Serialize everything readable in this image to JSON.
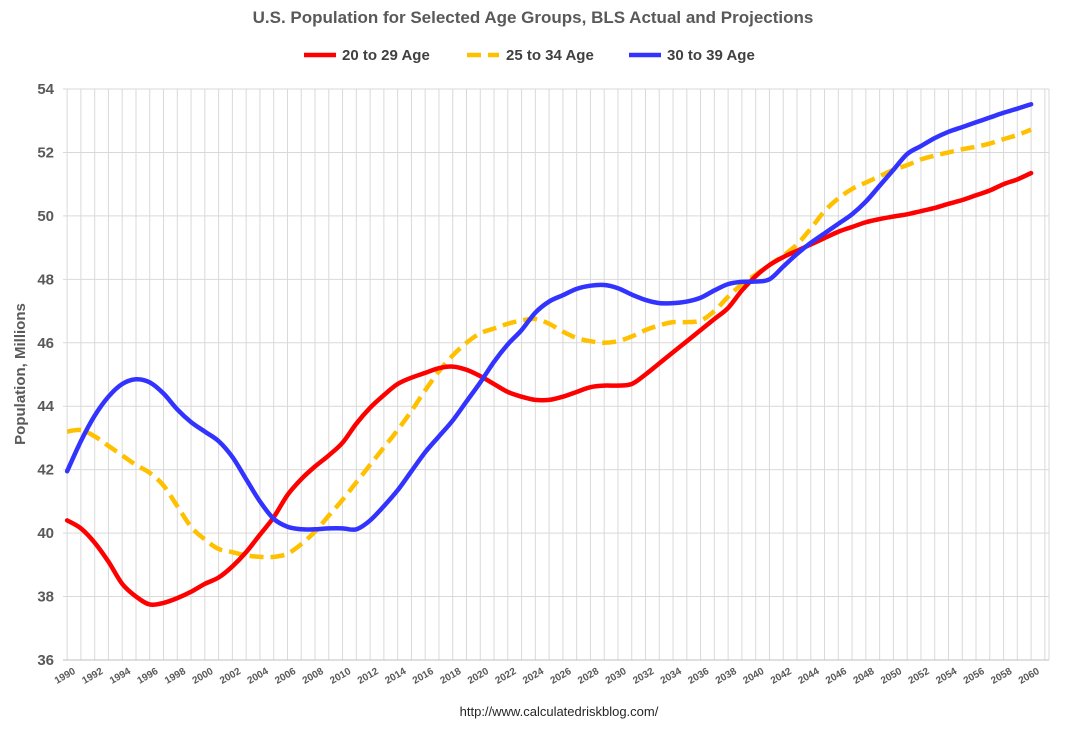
{
  "chart_data": {
    "type": "line",
    "title": "U.S. Population for Selected Age Groups, BLS Actual and Projections",
    "ylabel": "Population, Millions",
    "xlabel": "",
    "ylim": [
      36,
      54
    ],
    "yticks": [
      36,
      38,
      40,
      42,
      44,
      46,
      48,
      50,
      52,
      54
    ],
    "xlim": [
      1989.7,
      2061.3
    ],
    "xticks": [
      1990,
      1992,
      1994,
      1996,
      1998,
      2000,
      2002,
      2004,
      2006,
      2008,
      2010,
      2012,
      2014,
      2016,
      2018,
      2020,
      2022,
      2024,
      2026,
      2028,
      2030,
      2032,
      2034,
      2036,
      2038,
      2040,
      2042,
      2044,
      2046,
      2048,
      2050,
      2052,
      2054,
      2056,
      2058,
      2060
    ],
    "grid": true,
    "legend_position": "top-center",
    "source": "http://www.calculatedriskblog.com/",
    "series": [
      {
        "name": "20 to 29 Age",
        "color": "#ff0000",
        "dash": "solid",
        "x": [
          1990,
          1991,
          1992,
          1993,
          1994,
          1995,
          1996,
          1997,
          1998,
          1999,
          2000,
          2001,
          2002,
          2003,
          2004,
          2005,
          2006,
          2007,
          2008,
          2009,
          2010,
          2011,
          2012,
          2013,
          2014,
          2015,
          2016,
          2017,
          2018,
          2019,
          2020,
          2021,
          2022,
          2023,
          2024,
          2025,
          2026,
          2027,
          2028,
          2029,
          2030,
          2031,
          2032,
          2033,
          2034,
          2035,
          2036,
          2037,
          2038,
          2039,
          2040,
          2041,
          2042,
          2043,
          2044,
          2045,
          2046,
          2047,
          2048,
          2049,
          2050,
          2051,
          2052,
          2053,
          2054,
          2055,
          2056,
          2057,
          2058,
          2059,
          2060
        ],
        "values": [
          40.4,
          40.15,
          39.7,
          39.1,
          38.4,
          38.0,
          37.75,
          37.8,
          37.95,
          38.15,
          38.4,
          38.6,
          38.95,
          39.4,
          39.95,
          40.5,
          41.2,
          41.7,
          42.1,
          42.45,
          42.85,
          43.45,
          43.95,
          44.35,
          44.7,
          44.9,
          45.05,
          45.2,
          45.25,
          45.15,
          44.95,
          44.7,
          44.45,
          44.3,
          44.2,
          44.2,
          44.3,
          44.45,
          44.6,
          44.65,
          44.65,
          44.7,
          45.0,
          45.35,
          45.7,
          46.05,
          46.4,
          46.75,
          47.1,
          47.65,
          48.1,
          48.45,
          48.7,
          48.9,
          49.1,
          49.3,
          49.5,
          49.65,
          49.8,
          49.9,
          49.98,
          50.05,
          50.15,
          50.25,
          50.38,
          50.5,
          50.65,
          50.8,
          51.0,
          51.15,
          51.35
        ]
      },
      {
        "name": "25 to 34 Age",
        "color": "#ffc000",
        "dash": "dashed",
        "x": [
          1990,
          1991,
          1992,
          1993,
          1994,
          1995,
          1996,
          1997,
          1998,
          1999,
          2000,
          2001,
          2002,
          2003,
          2004,
          2005,
          2006,
          2007,
          2008,
          2009,
          2010,
          2011,
          2012,
          2013,
          2014,
          2015,
          2016,
          2017,
          2018,
          2019,
          2020,
          2021,
          2022,
          2023,
          2024,
          2025,
          2026,
          2027,
          2028,
          2029,
          2030,
          2031,
          2032,
          2033,
          2034,
          2035,
          2036,
          2037,
          2038,
          2039,
          2040,
          2041,
          2042,
          2043,
          2044,
          2045,
          2046,
          2047,
          2048,
          2049,
          2050,
          2051,
          2052,
          2053,
          2054,
          2055,
          2056,
          2057,
          2058,
          2059,
          2060
        ],
        "values": [
          43.2,
          43.25,
          43.05,
          42.75,
          42.45,
          42.15,
          41.9,
          41.5,
          40.85,
          40.2,
          39.8,
          39.5,
          39.4,
          39.3,
          39.25,
          39.25,
          39.35,
          39.65,
          40.05,
          40.55,
          41.05,
          41.6,
          42.15,
          42.7,
          43.25,
          43.85,
          44.5,
          45.1,
          45.6,
          46.0,
          46.3,
          46.45,
          46.6,
          46.7,
          46.75,
          46.6,
          46.35,
          46.15,
          46.05,
          46.0,
          46.05,
          46.2,
          46.4,
          46.55,
          46.65,
          46.65,
          46.7,
          47.0,
          47.45,
          47.85,
          48.15,
          48.45,
          48.75,
          49.1,
          49.6,
          50.15,
          50.55,
          50.85,
          51.05,
          51.25,
          51.45,
          51.6,
          51.78,
          51.9,
          52.0,
          52.1,
          52.18,
          52.28,
          52.42,
          52.55,
          52.72
        ]
      },
      {
        "name": "30 to 39 Age",
        "color": "#3333ff",
        "dash": "solid",
        "x": [
          1990,
          1991,
          1992,
          1993,
          1994,
          1995,
          1996,
          1997,
          1998,
          1999,
          2000,
          2001,
          2002,
          2003,
          2004,
          2005,
          2006,
          2007,
          2008,
          2009,
          2010,
          2011,
          2012,
          2013,
          2014,
          2015,
          2016,
          2017,
          2018,
          2019,
          2020,
          2021,
          2022,
          2023,
          2024,
          2025,
          2026,
          2027,
          2028,
          2029,
          2030,
          2031,
          2032,
          2033,
          2034,
          2035,
          2036,
          2037,
          2038,
          2039,
          2040,
          2041,
          2042,
          2043,
          2044,
          2045,
          2046,
          2047,
          2048,
          2049,
          2050,
          2051,
          2052,
          2053,
          2054,
          2055,
          2056,
          2057,
          2058,
          2059,
          2060
        ],
        "values": [
          41.95,
          42.9,
          43.7,
          44.3,
          44.7,
          44.85,
          44.75,
          44.4,
          43.9,
          43.5,
          43.2,
          42.9,
          42.4,
          41.7,
          41.0,
          40.45,
          40.2,
          40.12,
          40.12,
          40.15,
          40.15,
          40.12,
          40.4,
          40.85,
          41.35,
          41.95,
          42.55,
          43.05,
          43.55,
          44.15,
          44.75,
          45.4,
          45.95,
          46.4,
          46.95,
          47.3,
          47.5,
          47.7,
          47.8,
          47.82,
          47.72,
          47.52,
          47.35,
          47.25,
          47.25,
          47.3,
          47.42,
          47.65,
          47.85,
          47.92,
          47.93,
          48.0,
          48.4,
          48.8,
          49.15,
          49.45,
          49.75,
          50.05,
          50.45,
          50.95,
          51.45,
          51.95,
          52.2,
          52.45,
          52.65,
          52.8,
          52.95,
          53.1,
          53.25,
          53.38,
          53.52
        ]
      }
    ]
  }
}
